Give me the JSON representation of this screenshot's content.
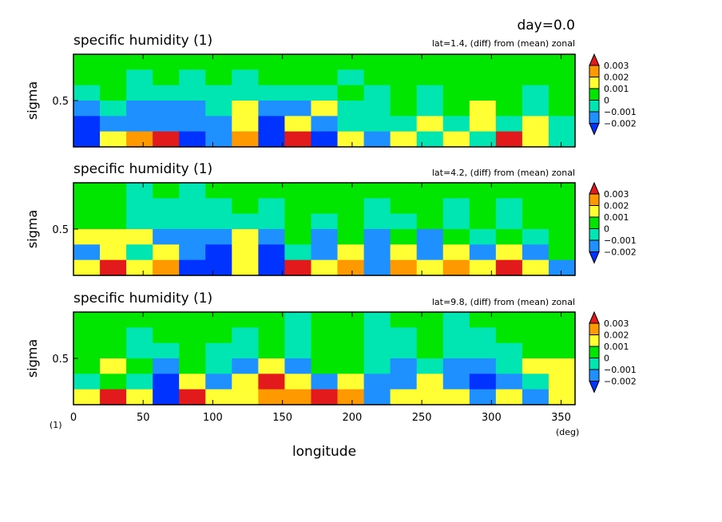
{
  "header": {
    "day_label": "day=0.0"
  },
  "x_axis": {
    "label": "longitude",
    "unit": "(deg)",
    "corner_unit": "(1)",
    "range": [
      0,
      360
    ],
    "ticks": [
      "0",
      "50",
      "100",
      "150",
      "200",
      "250",
      "300",
      "350"
    ]
  },
  "colorbar": {
    "levels": [
      "0.003",
      "0.002",
      "0.001",
      "0",
      "−0.001",
      "−0.002"
    ],
    "colors": [
      "#e31a1c",
      "#ff9900",
      "#ffff33",
      "#00e600",
      "#00e6b3",
      "#1e90ff",
      "#0033ff"
    ]
  },
  "chart_data": [
    {
      "type": "heatmap",
      "title": "specific humidity (1)",
      "subtitle": "lat=1.4, (diff) from (mean) zonal",
      "ylabel": "sigma",
      "ytick": "0.5",
      "xlim": [
        0,
        360
      ],
      "ylim": [
        1,
        0
      ],
      "columns": [
        0,
        20,
        40,
        60,
        80,
        100,
        120,
        140,
        160,
        180,
        200,
        220,
        240,
        260,
        280,
        300,
        320,
        340,
        360
      ],
      "rows_sigma": [
        0.1,
        0.3,
        0.5,
        0.7,
        0.85,
        0.95
      ],
      "values": [
        [
          0.0003,
          0.0004,
          0.0003,
          0.0002,
          0.0004,
          0.0003,
          0.0002,
          0.0004,
          0.0003,
          0.0004,
          0.0003,
          0.0004,
          0.0003,
          0.0004,
          0.0003,
          0.0004,
          0.0003,
          0.0002,
          0.0003
        ],
        [
          0.0004,
          0.0002,
          -0.0004,
          0.0003,
          -0.0004,
          0.0003,
          -0.0004,
          0.0003,
          0.0004,
          0.0003,
          -0.0004,
          0.0004,
          0.0003,
          0.0004,
          0.0004,
          0.0003,
          0.0004,
          0.0004,
          0.0003
        ],
        [
          -0.0006,
          0.0001,
          -0.0007,
          -0.0005,
          -0.0007,
          -0.0006,
          -0.0008,
          -0.0009,
          -0.0006,
          -0.0008,
          0.0002,
          -0.0004,
          0.0003,
          -0.0005,
          0.0003,
          0.0002,
          0.0003,
          -0.0004,
          0.0003
        ],
        [
          -0.0012,
          -0.0008,
          -0.0011,
          -0.0014,
          -0.0012,
          -0.0009,
          0.0012,
          -0.0016,
          -0.0014,
          0.0011,
          -0.0006,
          -0.0003,
          0.0004,
          -0.0008,
          0.0003,
          0.0012,
          0.0003,
          -0.0009,
          0.0004
        ],
        [
          -0.0019,
          -0.0011,
          -0.0013,
          -0.0017,
          -0.0016,
          -0.0013,
          0.0013,
          -0.0021,
          0.0014,
          -0.0013,
          -0.0009,
          -0.0006,
          -0.0005,
          0.0012,
          -0.0004,
          0.0013,
          -0.0006,
          0.0011,
          -0.0005
        ],
        [
          -0.0023,
          0.0012,
          0.0015,
          0.0029,
          -0.0022,
          -0.0018,
          0.0015,
          -0.0021,
          0.0031,
          -0.0019,
          0.0012,
          -0.0011,
          0.0014,
          -0.0008,
          0.0012,
          -0.0005,
          0.0031,
          0.0013,
          -0.0006
        ]
      ]
    },
    {
      "type": "heatmap",
      "title": "specific humidity (1)",
      "subtitle": "lat=4.2, (diff) from (mean) zonal",
      "ylabel": "sigma",
      "ytick": "0.5",
      "xlim": [
        0,
        360
      ],
      "ylim": [
        1,
        0
      ],
      "columns": [
        0,
        20,
        40,
        60,
        80,
        100,
        120,
        140,
        160,
        180,
        200,
        220,
        240,
        260,
        280,
        300,
        320,
        340,
        360
      ],
      "rows_sigma": [
        0.1,
        0.3,
        0.5,
        0.7,
        0.85,
        0.95
      ],
      "values": [
        [
          0.0003,
          0.0004,
          -0.0004,
          0.0003,
          -0.0004,
          0.0003,
          0.0004,
          0.0003,
          0.0004,
          0.0003,
          0.0004,
          0.0003,
          0.0004,
          0.0003,
          0.0004,
          0.0003,
          0.0004,
          0.0003,
          0.0004
        ],
        [
          0.0003,
          0.0002,
          -0.0006,
          -0.0004,
          -0.0005,
          -0.0004,
          0.0003,
          -0.0006,
          0.0004,
          0.0003,
          0.0003,
          -0.0004,
          0.0003,
          0.0004,
          -0.0004,
          0.0003,
          -0.0004,
          0.0003,
          0.0003
        ],
        [
          0.0004,
          0.0003,
          -0.0007,
          -0.0008,
          -0.0007,
          -0.0009,
          -0.0004,
          -0.0008,
          0.0003,
          -0.0005,
          0.0003,
          -0.0006,
          -0.0005,
          0.0003,
          -0.0006,
          0.0003,
          -0.0007,
          0.0003,
          0.0003
        ],
        [
          0.0012,
          0.0013,
          0.0011,
          -0.0012,
          -0.0011,
          -0.0016,
          0.0012,
          -0.0014,
          0.0002,
          -0.0012,
          0.0002,
          -0.0012,
          0.0003,
          -0.0011,
          0.0004,
          -0.0007,
          0.0004,
          -0.0005,
          0.0003
        ],
        [
          -0.0013,
          0.0012,
          -0.0009,
          0.0012,
          -0.0015,
          -0.0019,
          0.0014,
          -0.0022,
          -0.0009,
          -0.0015,
          0.0013,
          -0.0013,
          0.0011,
          -0.0017,
          0.0012,
          -0.0013,
          0.0012,
          -0.0011,
          0.0004
        ],
        [
          0.0012,
          0.0026,
          0.0013,
          0.0022,
          -0.0021,
          -0.0019,
          0.0012,
          -0.0022,
          0.0028,
          0.0014,
          0.0024,
          -0.0016,
          0.0022,
          0.0012,
          0.0018,
          0.0013,
          0.0031,
          0.0012,
          -0.0011
        ]
      ]
    },
    {
      "type": "heatmap",
      "title": "specific humidity (1)",
      "subtitle": "lat=9.8, (diff) from (mean) zonal",
      "ylabel": "sigma",
      "ytick": "0.5",
      "xlim": [
        0,
        360
      ],
      "ylim": [
        1,
        0
      ],
      "columns": [
        0,
        20,
        40,
        60,
        80,
        100,
        120,
        140,
        160,
        180,
        200,
        220,
        240,
        260,
        280,
        300,
        320,
        340,
        360
      ],
      "rows_sigma": [
        0.1,
        0.3,
        0.5,
        0.7,
        0.85,
        0.95
      ],
      "values": [
        [
          0.0004,
          0.0003,
          0.0004,
          0.0003,
          0.0004,
          0.0003,
          0.0002,
          0.0004,
          -0.0003,
          0.0003,
          0.0004,
          -0.0003,
          0.0004,
          0.0003,
          -0.0004,
          0.0003,
          0.0004,
          0.0003,
          0.0004
        ],
        [
          0.0003,
          0.0004,
          -0.0003,
          0.0003,
          0.0004,
          0.0003,
          -0.0004,
          0.0003,
          -0.0005,
          0.0004,
          0.0003,
          -0.0004,
          -0.0004,
          0.0003,
          -0.0005,
          -0.0004,
          0.0003,
          0.0004,
          0.0003
        ],
        [
          0.0002,
          0.0003,
          -0.0004,
          -0.0008,
          0.0003,
          -0.0004,
          -0.0006,
          0.0002,
          -0.0007,
          0.0003,
          0.0002,
          -0.0006,
          -0.0008,
          0.0002,
          -0.0007,
          -0.0008,
          -0.0004,
          0.0003,
          0.0004
        ],
        [
          0.0004,
          0.0011,
          0.0003,
          -0.0016,
          0.0004,
          -0.0009,
          -0.0011,
          0.0011,
          -0.0012,
          0.0004,
          0.0003,
          -0.0009,
          -0.0012,
          -0.0008,
          -0.0011,
          -0.0014,
          -0.0009,
          0.0012,
          0.0013
        ],
        [
          -0.0004,
          0.0004,
          -0.0005,
          -0.0021,
          0.0012,
          -0.0011,
          0.0013,
          0.0025,
          0.0014,
          -0.0013,
          0.0011,
          -0.0011,
          -0.0016,
          0.0012,
          -0.0013,
          -0.0019,
          -0.0013,
          -0.0009,
          0.0014
        ],
        [
          0.0012,
          0.0031,
          0.0013,
          -0.0019,
          0.003,
          0.0014,
          0.0012,
          0.0021,
          0.0024,
          0.0031,
          0.0022,
          -0.0012,
          0.0014,
          0.0012,
          0.0013,
          -0.0017,
          0.0013,
          -0.0011,
          0.0012
        ]
      ]
    }
  ]
}
